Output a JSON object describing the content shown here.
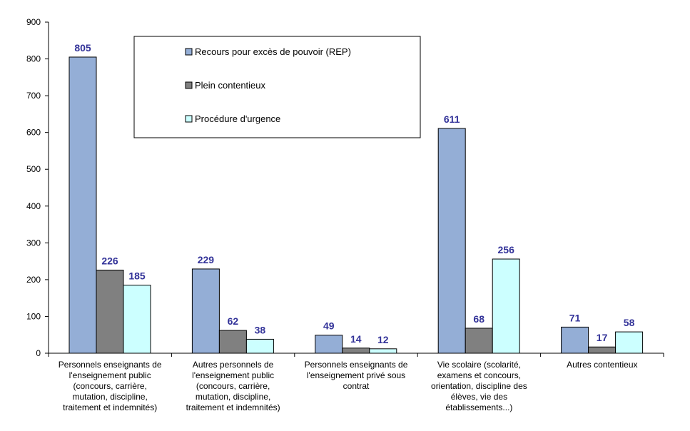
{
  "chart_data": {
    "type": "bar",
    "categories": [
      [
        "Personnels enseignants de",
        "l'enseignement public",
        "(concours, carrière,",
        "mutation, discipline,",
        "traitement et indemnités)"
      ],
      [
        "Autres personnels de",
        "l'enseignement public",
        "(concours, carrière,",
        "mutation, discipline,",
        "traitement et indemnités)"
      ],
      [
        "Personnels enseignants de",
        "l'enseignement privé sous",
        "contrat"
      ],
      [
        "Vie scolaire (scolarité,",
        "examens et concours,",
        "orientation, discipline des",
        "élèves, vie des",
        "établissements...)"
      ],
      [
        "Autres contentieux"
      ]
    ],
    "series": [
      {
        "name": "Recours pour excès de pouvoir (REP)",
        "color": "#94AED6",
        "values": [
          805,
          229,
          49,
          611,
          71
        ]
      },
      {
        "name": "Plein contentieux",
        "color": "#808080",
        "values": [
          226,
          62,
          14,
          68,
          17
        ]
      },
      {
        "name": "Procédure d'urgence",
        "color": "#CCFFFF",
        "values": [
          185,
          38,
          12,
          256,
          58
        ]
      }
    ],
    "ylim": [
      0,
      900
    ],
    "yticks": [
      0,
      100,
      200,
      300,
      400,
      500,
      600,
      700,
      800,
      900
    ],
    "data_label_color": "#333399",
    "legend_position": "top-center",
    "grid": false
  }
}
